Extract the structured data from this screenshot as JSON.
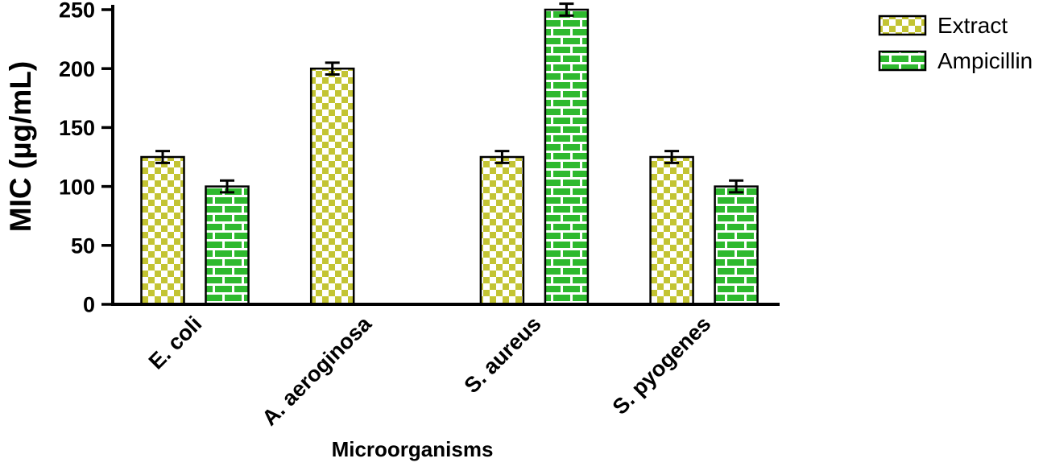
{
  "chart_data": {
    "type": "bar",
    "title": "",
    "xlabel": "Microorganisms",
    "ylabel": "MIC (µg/mL)",
    "ylim": [
      0,
      250
    ],
    "yticks": [
      0,
      50,
      100,
      150,
      200,
      250
    ],
    "categories": [
      "E. coli",
      "A. aeroginosa",
      "S. aureus",
      "S. pyogenes"
    ],
    "series": [
      {
        "name": "Extract",
        "pattern": "checker",
        "color": "#c3c433",
        "pattern_bg": "#ffffff",
        "values": [
          125,
          200,
          125,
          125
        ],
        "errors": [
          5,
          5,
          5,
          5
        ]
      },
      {
        "name": "Ampicillin",
        "pattern": "brick",
        "color": "#2eb92e",
        "pattern_bg": "#ffffff",
        "values": [
          100,
          null,
          250,
          100
        ],
        "errors": [
          5,
          null,
          5,
          5
        ]
      }
    ],
    "legend_position": "top-right",
    "grid": false,
    "bar_outline_color": "#000000",
    "axis_color": "#000000"
  }
}
